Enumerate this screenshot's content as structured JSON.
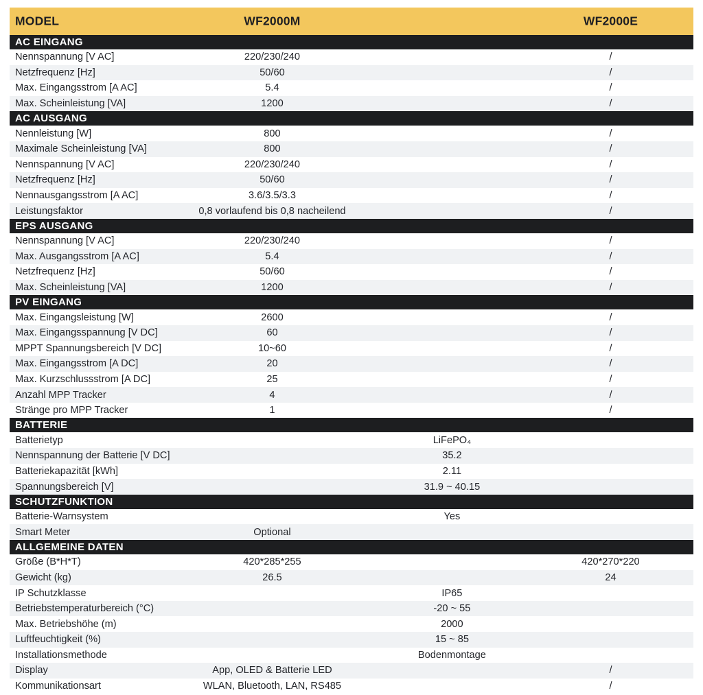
{
  "table": {
    "header": {
      "model_label": "MODEL",
      "col_m": "WF2000M",
      "col_e": "WF2000E"
    },
    "colors": {
      "header_bg": "#F3C75D",
      "section_bg": "#1D1E20",
      "stripe_bg": "#F0F2F4",
      "text": "#23252A"
    },
    "sections": [
      {
        "title": "AC EINGANG",
        "rows": [
          {
            "label": "Nennspannung [V AC]",
            "m": "220/230/240",
            "e": "/"
          },
          {
            "label": "Netzfrequenz [Hz]",
            "m": "50/60",
            "e": "/"
          },
          {
            "label": "Max. Eingangsstrom [A AC]",
            "m": "5.4",
            "e": "/"
          },
          {
            "label": "Max. Scheinleistung [VA]",
            "m": "1200",
            "e": "/"
          }
        ]
      },
      {
        "title": "AC AUSGANG",
        "rows": [
          {
            "label": "Nennleistung [W]",
            "m": "800",
            "e": "/"
          },
          {
            "label": "Maximale Scheinleistung [VA]",
            "m": "800",
            "e": "/"
          },
          {
            "label": "Nennspannung [V AC]",
            "m": "220/230/240",
            "e": "/"
          },
          {
            "label": "Netzfrequenz [Hz]",
            "m": "50/60",
            "e": "/"
          },
          {
            "label": "Nennausgangsstrom [A AC]",
            "m": "3.6/3.5/3.3",
            "e": "/"
          },
          {
            "label": "Leistungsfaktor",
            "m": "0,8 vorlaufend bis 0,8 nacheilend",
            "e": "/"
          }
        ]
      },
      {
        "title": "EPS AUSGANG",
        "rows": [
          {
            "label": "Nennspannung [V AC]",
            "m": "220/230/240",
            "e": "/"
          },
          {
            "label": "Max. Ausgangsstrom [A AC]",
            "m": "5.4",
            "e": "/"
          },
          {
            "label": "Netzfrequenz [Hz]",
            "m": "50/60",
            "e": "/"
          },
          {
            "label": "Max. Scheinleistung [VA]",
            "m": "1200",
            "e": "/"
          }
        ]
      },
      {
        "title": "PV EINGANG",
        "rows": [
          {
            "label": "Max. Eingangsleistung [W]",
            "m": "2600",
            "e": "/"
          },
          {
            "label": "Max. Eingangsspannung [V DC]",
            "m": "60",
            "e": "/"
          },
          {
            "label": "MPPT Spannungsbereich [V DC]",
            "m": "10~60",
            "e": "/"
          },
          {
            "label": "Max. Eingangsstrom [A DC]",
            "m": "20",
            "e": "/"
          },
          {
            "label": "Max. Kurzschlussstrom [A DC]",
            "m": "25",
            "e": "/"
          },
          {
            "label": "Anzahl MPP Tracker",
            "m": "4",
            "e": "/"
          },
          {
            "label": "Stränge pro MPP Tracker",
            "m": "1",
            "e": "/"
          }
        ]
      },
      {
        "title": "BATTERIE",
        "rows": [
          {
            "label": "Batterietyp",
            "span": "LiFePO₄"
          },
          {
            "label": "Nennspannung der Batterie [V DC]",
            "span": "35.2"
          },
          {
            "label": "Batteriekapazität [kWh]",
            "span": "2.11"
          },
          {
            "label": "Spannungsbereich [V]",
            "span": "31.9 ~ 40.15"
          }
        ]
      },
      {
        "title": "SCHUTZFUNKTION",
        "rows": [
          {
            "label": "Batterie-Warnsystem",
            "span": "Yes"
          },
          {
            "label": "Smart Meter",
            "m": "Optional"
          }
        ]
      },
      {
        "title": "ALLGEMEINE DATEN",
        "rows": [
          {
            "label": "Größe (B*H*T)",
            "m": "420*285*255",
            "e": "420*270*220"
          },
          {
            "label": "Gewicht (kg)",
            "m": "26.5",
            "e": "24"
          },
          {
            "label": "IP Schutzklasse",
            "span": "IP65"
          },
          {
            "label": "Betriebstemperaturbereich (°C)",
            "span": "-20 ~ 55"
          },
          {
            "label": "Max. Betriebshöhe (m)",
            "span": "2000"
          },
          {
            "label": "Luftfeuchtigkeit (%)",
            "span": "15 ~ 85"
          },
          {
            "label": "Installationsmethode",
            "span": "Bodenmontage"
          },
          {
            "label": "Display",
            "m": "App, OLED & Batterie LED",
            "e": "/"
          },
          {
            "label": "Kommunikationsart",
            "m": "WLAN, Bluetooth, LAN, RS485",
            "e": "/"
          }
        ]
      }
    ]
  }
}
